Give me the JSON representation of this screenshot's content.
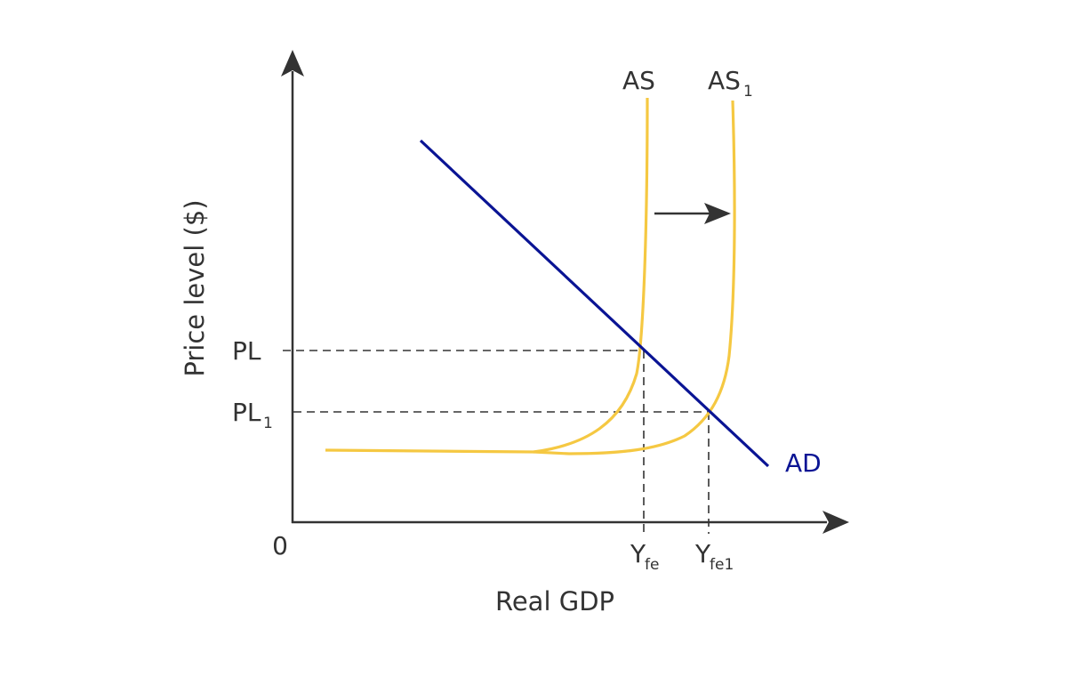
{
  "labels": {
    "y_axis": "Price level ($)",
    "x_axis": "Real GDP",
    "origin": "0",
    "pl": "PL",
    "pl1_main": "PL",
    "pl1_sub": "1",
    "as": "AS",
    "as1_main": "AS",
    "as1_sub": "1",
    "ad": "AD",
    "yfe_main": "Y",
    "yfe_sub": "fe",
    "yfe1_main": "Y",
    "yfe1_sub": "fe1"
  },
  "colors": {
    "axis": "#333333",
    "as_curve": "#f5c842",
    "ad_curve": "#0a1494",
    "ad_label": "#0a1494",
    "guide": "#333333",
    "shift_arrow": "#333333"
  }
}
